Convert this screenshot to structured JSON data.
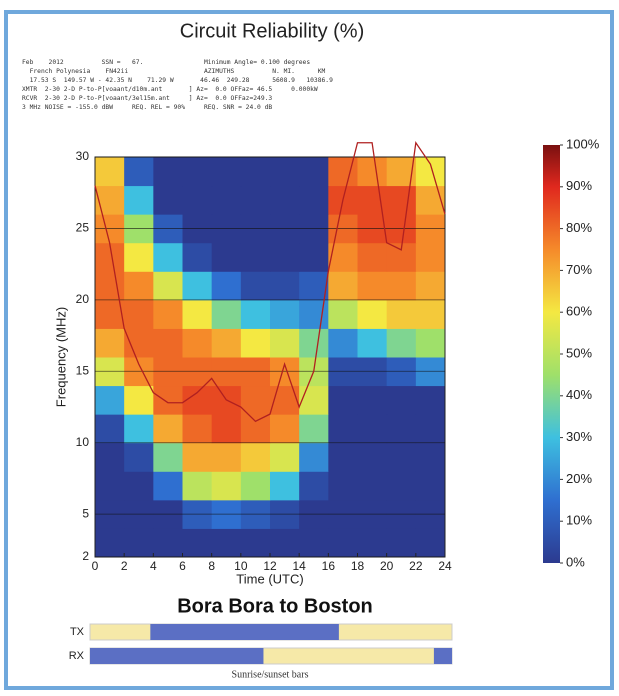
{
  "chart_data": {
    "type": "heatmap",
    "title": "Circuit Reliability (%)",
    "header_lines": [
      "Feb    2012          SSN =   67.                Minimum Angle= 0.100 degrees",
      "  French Polynesia    FN42ii                    AZIMUTHS          N. MI.      KM",
      "  17.53 S  149.57 W - 42.35 N    71.29 W       46.46  249.28      5608.9   10386.9",
      "XMTR  2-30 2-D P-to-P[voaant/d10m.ant       ] Az=  0.0 OFFaz= 46.5     0.000kW",
      "RCVR  2-30 2-D P-to-P[voaant/3el15m.ant     ] Az=  0.0 OFFaz=249.3",
      "3 MHz NOISE = -155.0 dBW     REQ. REL = 90%     REQ. SNR = 24.0 dB"
    ],
    "xlabel": "Time (UTC)",
    "ylabel": "Frequency (MHz)",
    "xlim": [
      0,
      24
    ],
    "xticks": [
      0,
      2,
      4,
      6,
      8,
      10,
      12,
      14,
      16,
      18,
      20,
      22,
      24
    ],
    "ylim": [
      2,
      30
    ],
    "yticks": [
      2,
      5,
      10,
      15,
      20,
      25,
      30
    ],
    "grid": true,
    "x_bins": [
      0,
      2,
      4,
      6,
      8,
      10,
      12,
      14,
      16,
      18,
      20,
      22,
      24
    ],
    "y_bins": [
      2,
      4,
      6,
      8,
      10,
      12,
      14,
      16,
      18,
      20,
      22,
      24,
      26,
      28,
      30
    ],
    "z": [
      [
        0,
        0,
        0,
        0,
        0,
        0,
        0,
        0,
        0,
        0,
        0,
        0
      ],
      [
        0,
        0,
        0,
        10,
        15,
        10,
        5,
        0,
        0,
        0,
        0,
        0
      ],
      [
        0,
        0,
        15,
        50,
        55,
        45,
        30,
        5,
        0,
        0,
        0,
        0
      ],
      [
        0,
        5,
        40,
        70,
        70,
        65,
        55,
        20,
        0,
        0,
        0,
        0
      ],
      [
        5,
        30,
        70,
        80,
        85,
        80,
        75,
        40,
        0,
        0,
        0,
        0
      ],
      [
        25,
        60,
        80,
        85,
        85,
        80,
        80,
        55,
        0,
        0,
        0,
        0
      ],
      [
        55,
        75,
        80,
        80,
        80,
        80,
        75,
        50,
        5,
        5,
        10,
        20
      ],
      [
        70,
        80,
        80,
        75,
        70,
        60,
        55,
        40,
        20,
        30,
        40,
        45
      ],
      [
        80,
        80,
        75,
        60,
        40,
        30,
        25,
        20,
        50,
        60,
        65,
        65
      ],
      [
        80,
        75,
        55,
        30,
        15,
        5,
        5,
        10,
        70,
        75,
        75,
        70
      ],
      [
        80,
        60,
        30,
        5,
        0,
        0,
        0,
        0,
        75,
        80,
        80,
        75
      ],
      [
        75,
        45,
        10,
        0,
        0,
        0,
        0,
        0,
        80,
        85,
        85,
        75
      ],
      [
        70,
        30,
        0,
        0,
        0,
        0,
        0,
        0,
        85,
        85,
        85,
        70
      ],
      [
        65,
        10,
        0,
        0,
        0,
        0,
        0,
        0,
        80,
        75,
        70,
        60
      ]
    ],
    "colorscale": [
      [
        0,
        "#2c3a8f"
      ],
      [
        15,
        "#2f6fd0"
      ],
      [
        30,
        "#3ec0e0"
      ],
      [
        45,
        "#9fe06a"
      ],
      [
        60,
        "#f4e842"
      ],
      [
        75,
        "#f58a2a"
      ],
      [
        90,
        "#e0281e"
      ],
      [
        100,
        "#7a1010"
      ]
    ],
    "clim": [
      0,
      100
    ],
    "cticks": [
      {
        "value": 0,
        "label": "0%"
      },
      {
        "value": 10,
        "label": "10%"
      },
      {
        "value": 20,
        "label": "20%"
      },
      {
        "value": 30,
        "label": "30%"
      },
      {
        "value": 40,
        "label": "40%"
      },
      {
        "value": 50,
        "label": "50%"
      },
      {
        "value": 60,
        "label": "60%"
      },
      {
        "value": 70,
        "label": "70%"
      },
      {
        "value": 80,
        "label": "80%"
      },
      {
        "value": 90,
        "label": "90%"
      },
      {
        "value": 100,
        "label": "100%"
      }
    ],
    "line": {
      "color": "#b02020",
      "x": [
        0,
        1,
        2,
        3,
        4,
        5,
        6,
        7,
        8,
        9,
        10,
        11,
        12,
        13,
        14,
        15,
        16,
        17,
        18,
        19,
        20,
        21,
        22,
        23,
        24
      ],
      "values": [
        28,
        24,
        18,
        15.5,
        13.5,
        12.8,
        12.8,
        13.5,
        14.5,
        13,
        12.5,
        11.5,
        12,
        15.5,
        12.5,
        15,
        22,
        27,
        31,
        31,
        24,
        23.5,
        31,
        29.5,
        26
      ]
    },
    "subtitle": "Bora Bora to Boston",
    "bars": [
      {
        "label": "TX",
        "dark": [
          [
            4,
            16.5
          ]
        ]
      },
      {
        "label": "RX",
        "dark": [
          [
            0,
            11.5
          ],
          [
            22.8,
            24
          ]
        ]
      }
    ],
    "bars_caption": "Sunrise/sunset bars"
  }
}
